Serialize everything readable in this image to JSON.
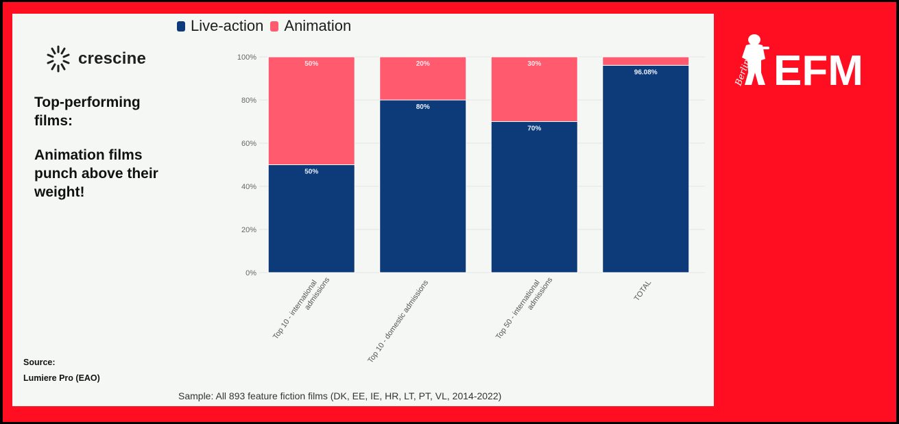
{
  "logo": {
    "name": "crescine",
    "icon": "burst-icon"
  },
  "left_panel": {
    "heading": "Top-performing films:",
    "tagline": "Animation films punch above their weight!",
    "source_label": "Source:",
    "source_value": "Lumiere Pro (EAO)"
  },
  "sample_note": "Sample: All 893 feature fiction films (DK, EE, IE, HR, LT, PT, VL, 2014-2022)",
  "brand": {
    "name": "EFM",
    "script": "Berlinale",
    "color": "#ff0d20"
  },
  "colors": {
    "live_action": "#0d3b7a",
    "animation": "#ff5a6e",
    "frame": "#ff0d20"
  },
  "chart_data": {
    "type": "bar",
    "stacked": true,
    "categories": [
      "Top 10 - international admissions",
      "Top 10 - domestic admissions",
      "Top 50 - international admissions",
      "TOTAL"
    ],
    "series": [
      {
        "name": "Live-action",
        "values": [
          50,
          80,
          70,
          96.08
        ],
        "labels": [
          "50%",
          "80%",
          "70%",
          "96.08%"
        ]
      },
      {
        "name": "Animation",
        "values": [
          50,
          20,
          30,
          3.92
        ],
        "labels": [
          "50%",
          "20%",
          "30%",
          ""
        ]
      }
    ],
    "ylim": [
      0,
      100
    ],
    "yticks": [
      "0%",
      "20%",
      "40%",
      "60%",
      "80%",
      "100%"
    ],
    "legend_position": "top",
    "grid": true
  }
}
